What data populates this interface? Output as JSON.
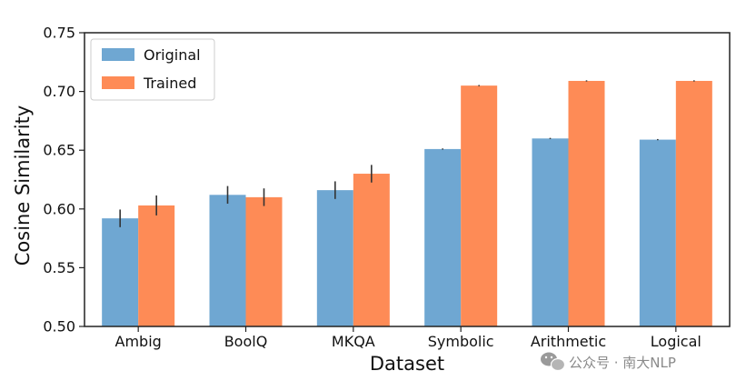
{
  "chart_data": {
    "type": "bar",
    "categories": [
      "Ambig",
      "BoolQ",
      "MKQA",
      "Symbolic",
      "Arithmetic",
      "Logical"
    ],
    "series": [
      {
        "name": "Original",
        "color": "#6fa7d2",
        "values": [
          0.592,
          0.612,
          0.616,
          0.651,
          0.66,
          0.659
        ],
        "errors": [
          0.0075,
          0.0075,
          0.0075,
          0.0005,
          0.0005,
          0.0005
        ]
      },
      {
        "name": "Trained",
        "color": "#fe8b56",
        "values": [
          0.603,
          0.61,
          0.63,
          0.705,
          0.709,
          0.709
        ],
        "errors": [
          0.0085,
          0.0075,
          0.0075,
          0.0005,
          0.0005,
          0.0005
        ]
      }
    ],
    "xlabel": "Dataset",
    "ylabel": "Cosine Similarity",
    "ylim": [
      0.5,
      0.75
    ],
    "yticks": [
      0.5,
      0.55,
      0.6,
      0.65,
      0.7,
      0.75
    ],
    "ytick_labels": [
      "0.50",
      "0.55",
      "0.60",
      "0.65",
      "0.70",
      "0.75"
    ],
    "grid": false,
    "legend_position": "top-left"
  },
  "watermark": {
    "icon": "wechat-icon",
    "text": "公众号 · 南大NLP"
  }
}
